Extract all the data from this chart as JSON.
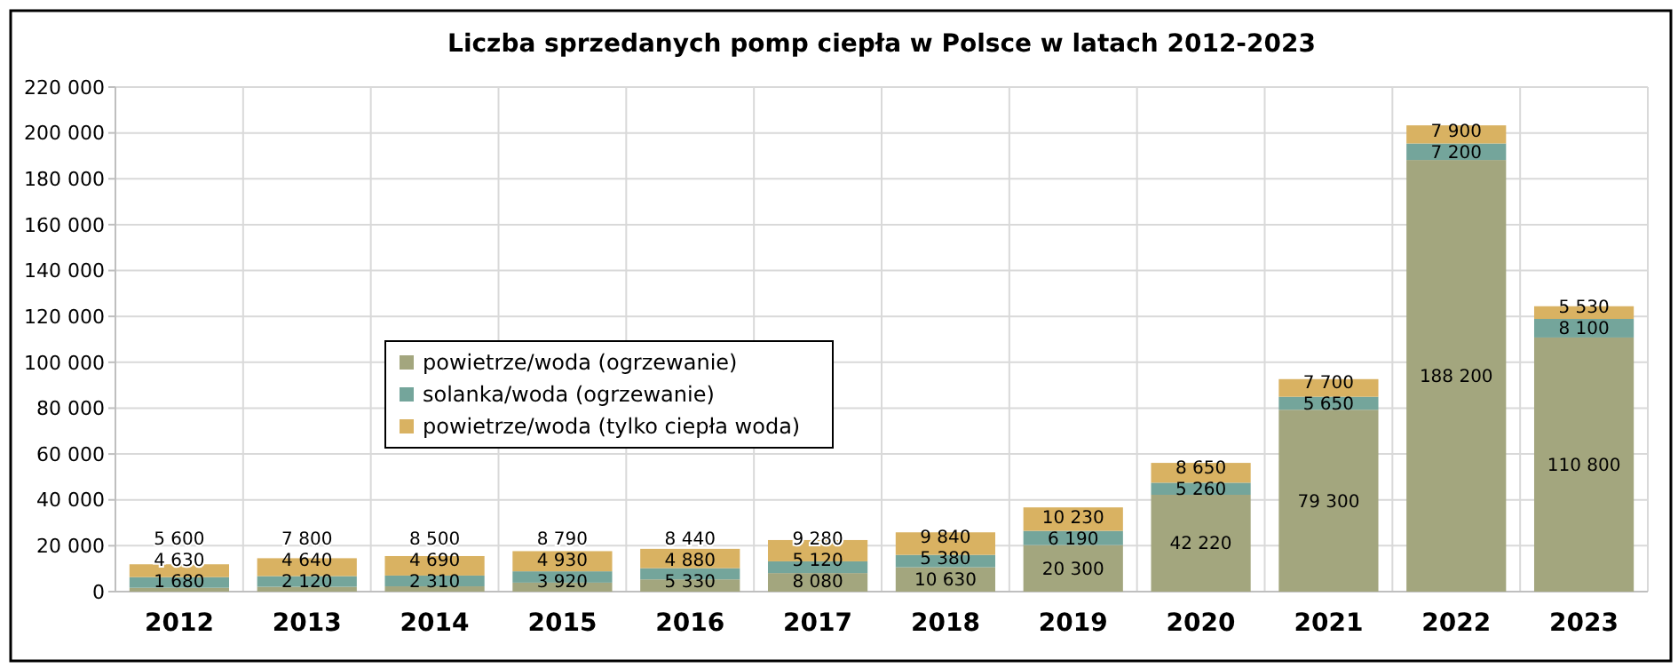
{
  "chart_data": {
    "type": "bar",
    "title": "Liczba sprzedanych pomp ciepła w Polsce w latach 2012-2023",
    "stacked": true,
    "categories": [
      "2012",
      "2013",
      "2014",
      "2015",
      "2016",
      "2017",
      "2018",
      "2019",
      "2020",
      "2021",
      "2022",
      "2023"
    ],
    "series": [
      {
        "name": "powietrze/woda (ogrzewanie)",
        "color": "#a3a67e",
        "values": [
          1680,
          2120,
          2310,
          3920,
          5330,
          8080,
          10630,
          20300,
          42220,
          79300,
          188200,
          110800
        ],
        "value_labels": [
          "1 680",
          "2 120",
          "2 310",
          "3 920",
          "5 330",
          "8 080",
          "10 630",
          "20 300",
          "42 220",
          "79 300",
          "188 200",
          "110 800"
        ]
      },
      {
        "name": "solanka/woda (ogrzewanie)",
        "color": "#74a59b",
        "values": [
          4630,
          4640,
          4690,
          4930,
          4880,
          5120,
          5380,
          6190,
          5260,
          5650,
          7200,
          8100
        ],
        "value_labels": [
          "4 630",
          "4 640",
          "4 690",
          "4 930",
          "4 880",
          "5 120",
          "5 380",
          "6 190",
          "5 260",
          "5 650",
          "7 200",
          "8 100"
        ]
      },
      {
        "name": "powietrze/woda (tylko ciepła woda)",
        "color": "#d9b262",
        "values": [
          5600,
          7800,
          8500,
          8790,
          8440,
          9280,
          9840,
          10230,
          8650,
          7700,
          7900,
          5530
        ],
        "value_labels": [
          "5 600",
          "7 800",
          "8 500",
          "8 790",
          "8 440",
          "9 280",
          "9 840",
          "10 230",
          "8 650",
          "7 700",
          "7 900",
          "5 530"
        ]
      }
    ],
    "ylim": [
      0,
      220000
    ],
    "yticks": [
      0,
      {
        "value": 20000,
        "label": "20 000"
      },
      {
        "value": 40000,
        "label": "40 000"
      },
      {
        "value": 60000,
        "label": "60 000"
      },
      {
        "value": 80000,
        "label": "80 000"
      },
      {
        "value": 100000,
        "label": "100 000"
      },
      {
        "value": 120000,
        "label": "120 000"
      },
      {
        "value": 140000,
        "label": "140 000"
      },
      {
        "value": 160000,
        "label": "160 000"
      },
      {
        "value": 180000,
        "label": "180 000"
      },
      {
        "value": 200000,
        "label": "200 000"
      },
      {
        "value": 220000,
        "label": "220 000"
      }
    ],
    "grid": true,
    "legend": "left"
  }
}
